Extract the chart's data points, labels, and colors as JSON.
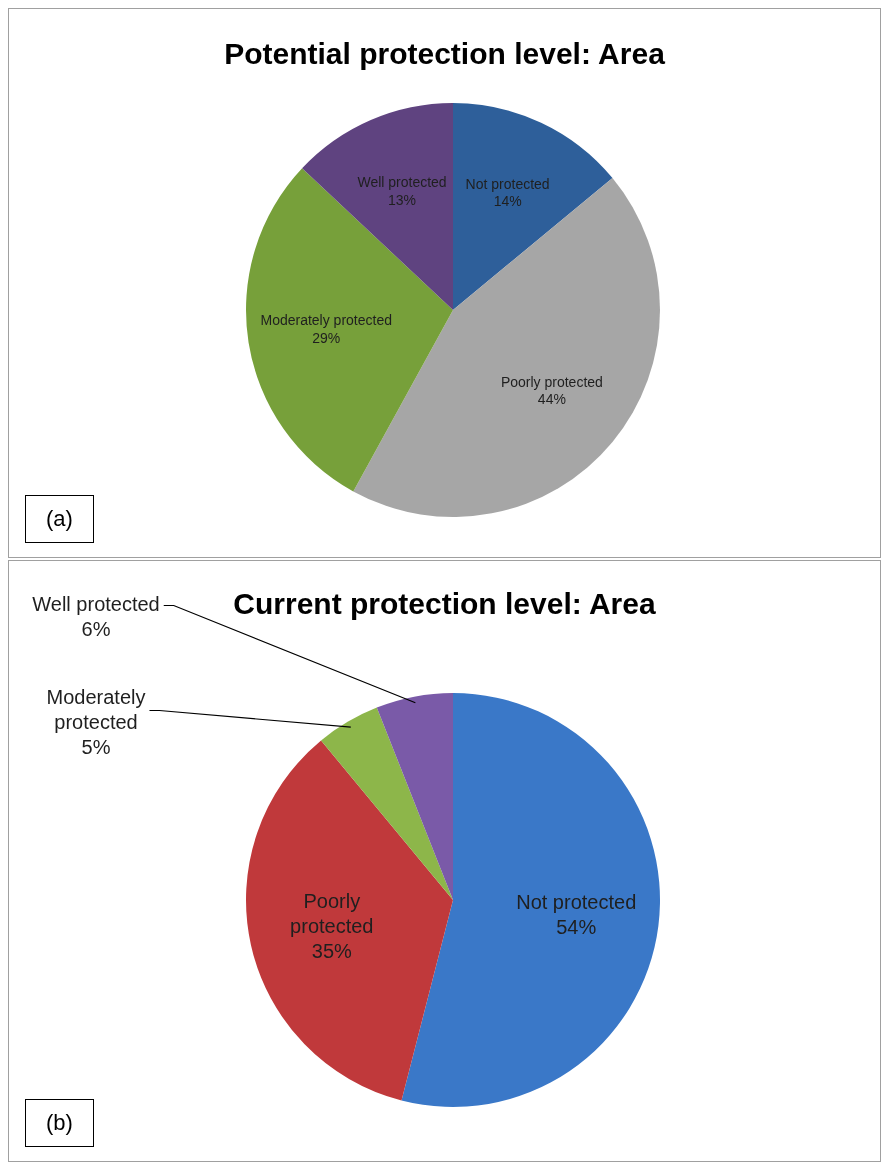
{
  "chart_data": [
    {
      "type": "pie",
      "title": "Potential protection level: Area",
      "categories": [
        "Not protected",
        "Poorly protected",
        "Moderately protected",
        "Well protected"
      ],
      "values": [
        14,
        44,
        29,
        13
      ],
      "value_labels": [
        "14%",
        "44%",
        "29%",
        "13%"
      ],
      "colors": [
        "#2e5f9a",
        "#a6a6a6",
        "#77a03a",
        "#5f4380"
      ],
      "annotations": [
        "(a)"
      ]
    },
    {
      "type": "pie",
      "title": "Current protection level: Area",
      "categories": [
        "Not protected",
        "Poorly protected",
        "Moderately protected",
        "Well protected"
      ],
      "values": [
        54,
        35,
        5,
        6
      ],
      "value_labels": [
        "54%",
        "35%",
        "5%",
        "6%"
      ],
      "colors": [
        "#3a78c8",
        "#c0393b",
        "#8db64a",
        "#7a5aa8"
      ],
      "annotations": [
        "(b)"
      ]
    }
  ]
}
